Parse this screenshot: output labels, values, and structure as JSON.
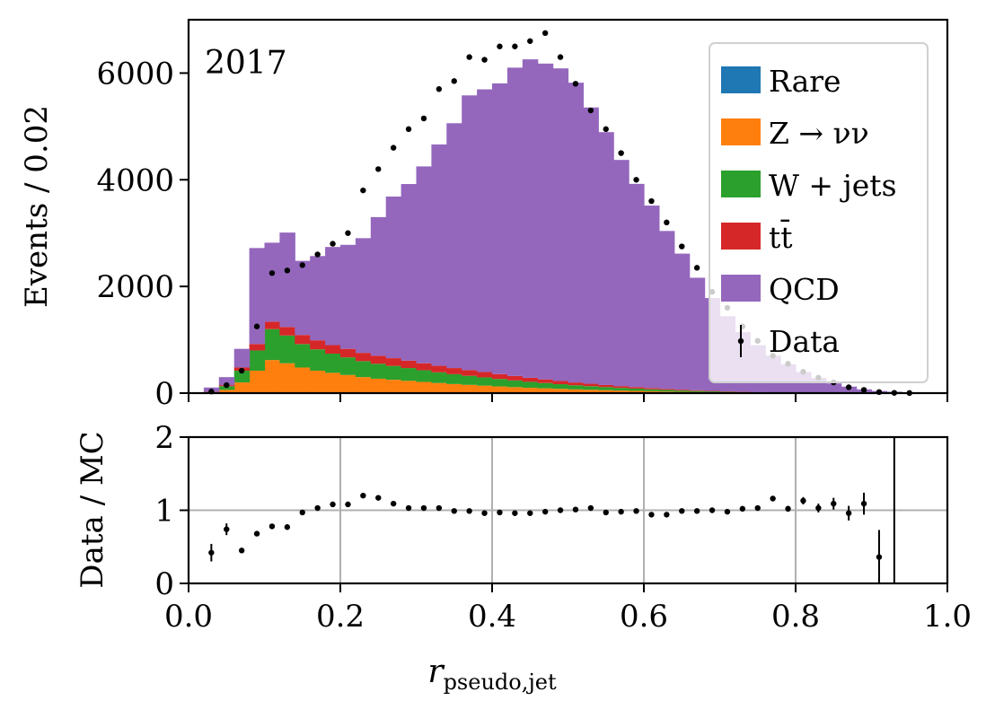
{
  "chart_data": [
    {
      "type": "area",
      "annotation": "2017",
      "ylabel": "Events / 0.02",
      "ylim": [
        0,
        7000
      ],
      "yticks": [
        "0",
        "2000",
        "4000",
        "6000"
      ],
      "bin_width": 0.02,
      "x": [
        0.01,
        0.03,
        0.05,
        0.07,
        0.09,
        0.11,
        0.13,
        0.15,
        0.17,
        0.19,
        0.21,
        0.23,
        0.25,
        0.27,
        0.29,
        0.31,
        0.33,
        0.35,
        0.37,
        0.39,
        0.41,
        0.43,
        0.45,
        0.47,
        0.49,
        0.51,
        0.53,
        0.55,
        0.57,
        0.59,
        0.61,
        0.63,
        0.65,
        0.67,
        0.69,
        0.71,
        0.73,
        0.75,
        0.77,
        0.79,
        0.81,
        0.83,
        0.85,
        0.87,
        0.89,
        0.91,
        0.93,
        0.95,
        0.97,
        0.99
      ],
      "legend": {
        "position": "upper right"
      },
      "series": [
        {
          "name": "Rare",
          "color": "#1f77b4",
          "values": [
            0,
            0,
            0,
            0,
            0,
            0,
            0,
            0,
            0,
            0,
            0,
            0,
            0,
            0,
            0,
            0,
            0,
            0,
            0,
            0,
            0,
            0,
            0,
            0,
            0,
            0,
            0,
            0,
            0,
            0,
            0,
            0,
            0,
            0,
            0,
            0,
            0,
            0,
            0,
            0,
            0,
            0,
            0,
            0,
            0,
            0,
            0,
            0,
            0,
            0
          ]
        },
        {
          "name": "Z → νν",
          "color": "#ff7f0e",
          "values": [
            0,
            10,
            60,
            200,
            420,
            620,
            560,
            480,
            420,
            380,
            340,
            300,
            270,
            250,
            230,
            210,
            190,
            170,
            155,
            140,
            125,
            112,
            100,
            90,
            80,
            70,
            62,
            55,
            48,
            42,
            36,
            30,
            25,
            20,
            16,
            12,
            9,
            7,
            5,
            4,
            3,
            2,
            1,
            1,
            0,
            0,
            0,
            0,
            0,
            0
          ]
        },
        {
          "name": "W + jets",
          "color": "#2ca02c",
          "values": [
            0,
            10,
            70,
            220,
            380,
            580,
            520,
            440,
            400,
            360,
            330,
            300,
            280,
            260,
            240,
            220,
            200,
            185,
            170,
            155,
            140,
            126,
            112,
            100,
            88,
            78,
            68,
            58,
            50,
            43,
            36,
            30,
            24,
            20,
            16,
            12,
            9,
            7,
            5,
            4,
            3,
            2,
            1,
            1,
            0,
            0,
            0,
            0,
            0,
            0
          ]
        },
        {
          "name": "tt̄",
          "color": "#d62728",
          "values": [
            0,
            5,
            20,
            60,
            120,
            140,
            160,
            170,
            170,
            160,
            160,
            155,
            150,
            145,
            140,
            130,
            122,
            115,
            107,
            100,
            92,
            84,
            76,
            68,
            60,
            52,
            46,
            40,
            34,
            28,
            24,
            20,
            16,
            13,
            10,
            8,
            6,
            4,
            3,
            2,
            1,
            1,
            0,
            0,
            0,
            0,
            0,
            0,
            0,
            0
          ]
        },
        {
          "name": "QCD",
          "color": "#9467bd",
          "values": [
            0,
            80,
            150,
            350,
            1800,
            1480,
            1770,
            1390,
            1580,
            1840,
            1950,
            2150,
            2600,
            3030,
            3310,
            3690,
            4150,
            4590,
            5150,
            5300,
            5450,
            5780,
            5970,
            5920,
            5860,
            5620,
            5180,
            4740,
            4240,
            3810,
            3420,
            2960,
            2550,
            2110,
            1740,
            1410,
            1120,
            880,
            690,
            530,
            390,
            280,
            180,
            120,
            70,
            40,
            25,
            15,
            5,
            0
          ]
        }
      ],
      "data": {
        "name": "Data",
        "values": [
          0,
          30,
          150,
          420,
          1250,
          2250,
          2300,
          2400,
          2600,
          2800,
          3000,
          3800,
          4200,
          4600,
          4950,
          5150,
          5700,
          5850,
          6300,
          6250,
          6500,
          6500,
          6600,
          6750,
          6300,
          5800,
          5300,
          4950,
          4500,
          4000,
          3600,
          3200,
          2750,
          2350,
          1900,
          1600,
          1250,
          980,
          700,
          550,
          400,
          290,
          200,
          110,
          60,
          20,
          5,
          2,
          0,
          0
        ]
      }
    },
    {
      "type": "scatter",
      "ylabel": "Data / MC",
      "xlabel": "r_pseudo,jet",
      "xlim": [
        0.0,
        1.0
      ],
      "ylim": [
        0,
        2
      ],
      "xticks": [
        "0.0",
        "0.2",
        "0.4",
        "0.6",
        "0.8",
        "1.0"
      ],
      "yticks": [
        "0",
        "1",
        "2"
      ],
      "grid": true,
      "reference_line": 1,
      "x": [
        0.03,
        0.05,
        0.07,
        0.09,
        0.11,
        0.13,
        0.15,
        0.17,
        0.19,
        0.21,
        0.23,
        0.25,
        0.27,
        0.29,
        0.31,
        0.33,
        0.35,
        0.37,
        0.39,
        0.41,
        0.43,
        0.45,
        0.47,
        0.49,
        0.51,
        0.53,
        0.55,
        0.57,
        0.59,
        0.61,
        0.63,
        0.65,
        0.67,
        0.69,
        0.71,
        0.73,
        0.75,
        0.77,
        0.79,
        0.81,
        0.83,
        0.85,
        0.87,
        0.89,
        0.91
      ],
      "y": [
        0.42,
        0.74,
        0.45,
        0.68,
        0.78,
        0.77,
        0.97,
        1.03,
        1.08,
        1.08,
        1.2,
        1.17,
        1.09,
        1.03,
        1.03,
        1.03,
        0.99,
        0.99,
        0.96,
        0.97,
        0.96,
        0.96,
        0.98,
        1.0,
        1.01,
        1.03,
        0.97,
        0.98,
        0.99,
        0.94,
        0.94,
        0.99,
        0.99,
        1.0,
        0.98,
        1.02,
        1.03,
        1.16,
        1.02,
        1.13,
        1.03,
        1.09,
        0.96,
        1.09,
        0.36
      ],
      "yerr": [
        0.12,
        0.08,
        0.03,
        0.02,
        0.02,
        0.02,
        0.01,
        0.01,
        0.01,
        0.01,
        0.01,
        0.01,
        0.01,
        0.01,
        0.01,
        0.01,
        0.01,
        0.01,
        0.01,
        0.01,
        0.01,
        0.01,
        0.01,
        0.01,
        0.01,
        0.01,
        0.01,
        0.01,
        0.01,
        0.01,
        0.01,
        0.01,
        0.02,
        0.02,
        0.02,
        0.02,
        0.03,
        0.03,
        0.04,
        0.05,
        0.06,
        0.08,
        0.1,
        0.15,
        0.37
      ],
      "offscale_point": {
        "x": 0.93,
        "err_high": 2.0
      }
    }
  ]
}
